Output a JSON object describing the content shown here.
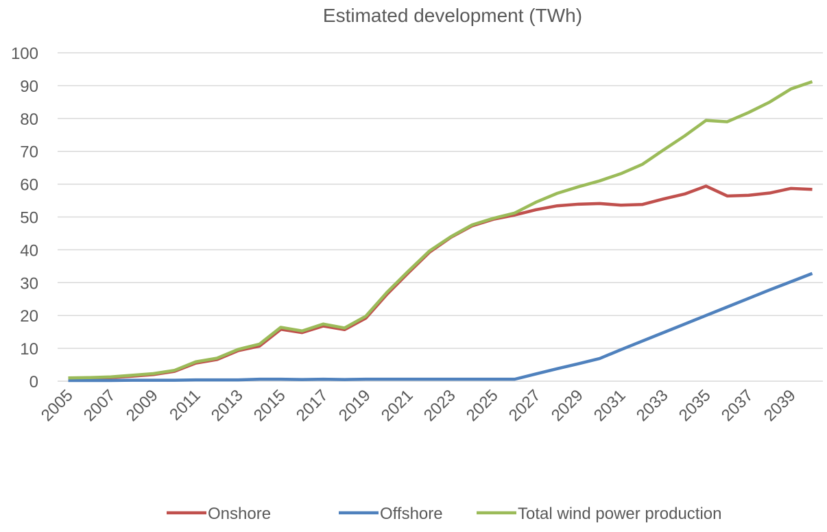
{
  "chart_data": {
    "type": "line",
    "title": "Estimated development (TWh)",
    "categories": [
      "2005",
      null,
      "2007",
      null,
      "2009",
      null,
      "2011",
      null,
      "2013",
      null,
      "2015",
      null,
      "2017",
      null,
      "2019",
      null,
      "2021",
      null,
      "2023",
      null,
      "2025",
      null,
      "2027",
      null,
      "2029",
      null,
      "2031",
      null,
      "2033",
      null,
      "2035",
      null,
      "2037",
      null,
      "2039",
      null
    ],
    "series": [
      {
        "name": "Onshore",
        "color": "#c0504d",
        "values": [
          0.8,
          0.9,
          1.1,
          1.5,
          2.0,
          3.0,
          5.5,
          6.6,
          9.3,
          10.7,
          15.8,
          14.8,
          16.8,
          15.7,
          19.2,
          26.5,
          33,
          39.3,
          43.8,
          47.3,
          49.3,
          50.6,
          52.2,
          53.4,
          53.9,
          54.1,
          53.6,
          53.8,
          55.5,
          57,
          59.4,
          56.4,
          56.6,
          57.3,
          58.7,
          58.4
        ]
      },
      {
        "name": "Offshore",
        "color": "#4f81bd",
        "values": [
          0.2,
          0.2,
          0.2,
          0.3,
          0.3,
          0.3,
          0.4,
          0.4,
          0.4,
          0.6,
          0.6,
          0.5,
          0.6,
          0.5,
          0.6,
          0.6,
          0.6,
          0.6,
          0.6,
          0.6,
          0.6,
          0.6,
          2.2,
          3.8,
          5.3,
          6.9,
          9.6,
          12.2,
          14.8,
          17.4,
          20,
          22.6,
          25.2,
          27.8,
          30.3,
          32.8
        ]
      },
      {
        "name": "Total wind power production",
        "color": "#9bbb59",
        "values": [
          1.0,
          1.1,
          1.3,
          1.8,
          2.3,
          3.3,
          5.9,
          7.0,
          9.7,
          11.3,
          16.4,
          15.3,
          17.4,
          16.2,
          19.8,
          27.1,
          33.5,
          39.7,
          44,
          47.6,
          49.6,
          51.2,
          54.5,
          57.2,
          59.2,
          61,
          63.2,
          66,
          70.4,
          74.7,
          79.4,
          79,
          81.8,
          85,
          89,
          91.2
        ]
      }
    ],
    "ylim": [
      0,
      100
    ],
    "yticks": [
      0,
      10,
      20,
      30,
      40,
      50,
      60,
      70,
      80,
      90,
      100
    ],
    "grid": true,
    "legend": "bottom"
  }
}
